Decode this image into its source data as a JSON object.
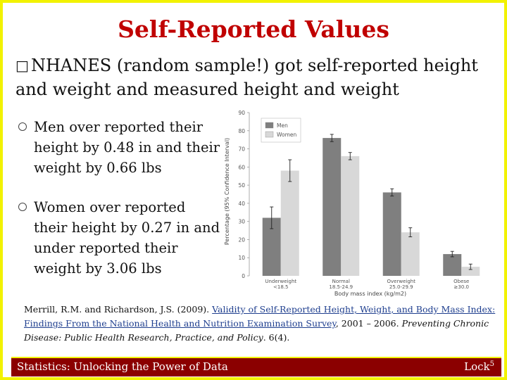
{
  "slide": {
    "title": "Self-Reported Values",
    "main_bullet_glyph": "□",
    "main_bullet": "NHANES (random sample!) got self-reported height and weight and measured height and weight",
    "sub_bullets": [
      "Men over reported their height by 0.48 in and their weight by 0.66 lbs",
      "Women over reported their height by 0.27 in and under reported their weight by 3.06 lbs"
    ],
    "citation": {
      "authors": "Merrill, R.M. and Richardson, J.S. (2009).",
      "link_text": "Validity of Self-Reported Height, Weight, and Body Mass Index: Findings From the National Health and Nutrition Examination Survey",
      "after_link": ", 2001 – 2006.",
      "venue": "Preventing Chronic Disease: Public Health Research, Practice, and Policy",
      "volume": ". 6(4)."
    },
    "footer": {
      "left": "Statistics: Unlocking the Power of Data",
      "right": "Lock",
      "right_sup": "5"
    },
    "colors": {
      "title": "#c00000",
      "border": "#f2f200",
      "footer_bg": "#8b0000",
      "link": "#1f3f8f"
    }
  },
  "chart_data": {
    "type": "bar",
    "ylabel": "Percentage (95% Confidence Interval)",
    "xlabel": "Body mass index (kg/m2)",
    "ylim": [
      0,
      90
    ],
    "yticks": [
      "0",
      "10",
      "20",
      "30",
      "40",
      "50",
      "60",
      "70",
      "80",
      "90"
    ],
    "categories": [
      [
        "Underweight",
        "<18.5"
      ],
      [
        "Normal",
        "18.5-24.9"
      ],
      [
        "Overweight",
        "25.0-29.9"
      ],
      [
        "Obese",
        "≥30.0"
      ]
    ],
    "series": [
      {
        "name": "Men",
        "color": "#7f7f7f",
        "values": [
          32,
          76,
          46,
          12
        ],
        "err": [
          6,
          2,
          2,
          1.5
        ]
      },
      {
        "name": "Women",
        "color": "#d8d8d8",
        "values": [
          58,
          66,
          24,
          5
        ],
        "err": [
          6,
          2,
          2.5,
          1.5
        ]
      }
    ],
    "legend_position": "top-left",
    "grid": false
  }
}
